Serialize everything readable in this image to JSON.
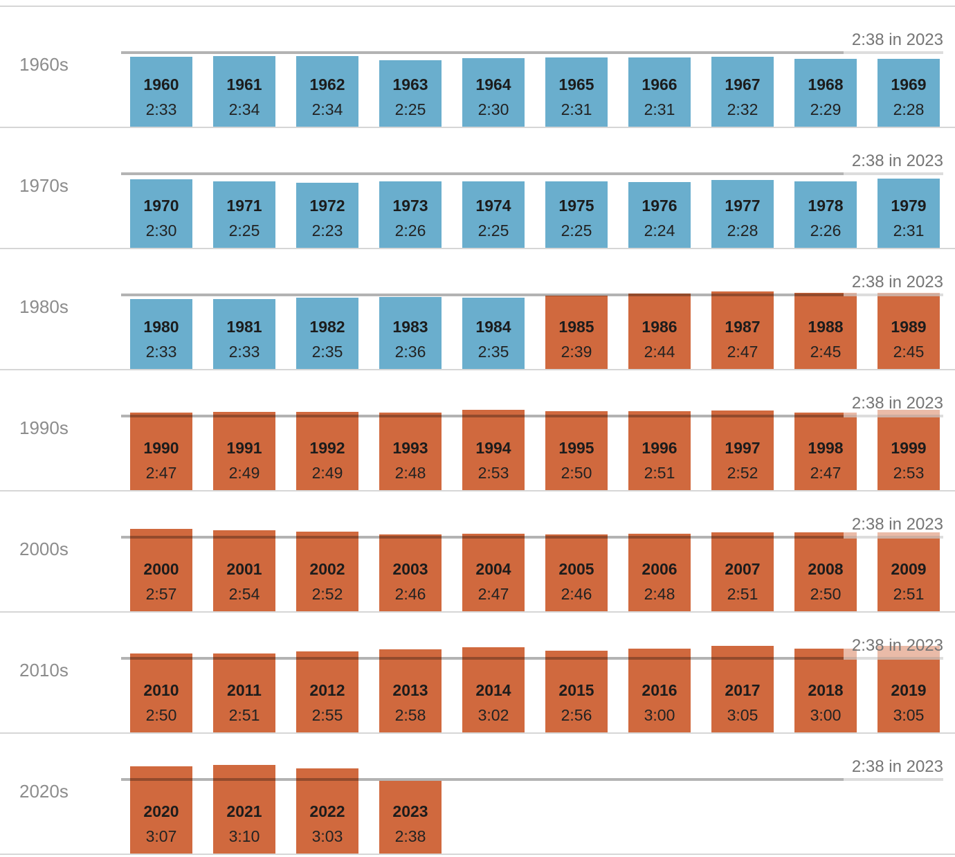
{
  "chart_data": {
    "type": "bar",
    "title": "",
    "reference_line": {
      "label": "2:38 in 2023",
      "value": "2:38",
      "value_minutes": 158
    },
    "color_rule": {
      "below_reference": "blue",
      "at_or_above_reference": "orange"
    },
    "colors": {
      "blue": "#6aaecd",
      "orange": "#d0693e",
      "reference_line": "#b3b3b3",
      "divider": "#d6d6d6",
      "decade_label_text": "#8c8c8c",
      "reference_label_text": "#757575",
      "bar_text": "#1c1c1c"
    },
    "rows": [
      {
        "decade": "1960s",
        "years": [
          {
            "year": "1960",
            "time": "2:33"
          },
          {
            "year": "1961",
            "time": "2:34"
          },
          {
            "year": "1962",
            "time": "2:34"
          },
          {
            "year": "1963",
            "time": "2:25"
          },
          {
            "year": "1964",
            "time": "2:30"
          },
          {
            "year": "1965",
            "time": "2:31"
          },
          {
            "year": "1966",
            "time": "2:31"
          },
          {
            "year": "1967",
            "time": "2:32"
          },
          {
            "year": "1968",
            "time": "2:29"
          },
          {
            "year": "1969",
            "time": "2:28"
          }
        ]
      },
      {
        "decade": "1970s",
        "years": [
          {
            "year": "1970",
            "time": "2:30"
          },
          {
            "year": "1971",
            "time": "2:25"
          },
          {
            "year": "1972",
            "time": "2:23"
          },
          {
            "year": "1973",
            "time": "2:26"
          },
          {
            "year": "1974",
            "time": "2:25"
          },
          {
            "year": "1975",
            "time": "2:25"
          },
          {
            "year": "1976",
            "time": "2:24"
          },
          {
            "year": "1977",
            "time": "2:28"
          },
          {
            "year": "1978",
            "time": "2:26"
          },
          {
            "year": "1979",
            "time": "2:31"
          }
        ]
      },
      {
        "decade": "1980s",
        "years": [
          {
            "year": "1980",
            "time": "2:33"
          },
          {
            "year": "1981",
            "time": "2:33"
          },
          {
            "year": "1982",
            "time": "2:35"
          },
          {
            "year": "1983",
            "time": "2:36"
          },
          {
            "year": "1984",
            "time": "2:35"
          },
          {
            "year": "1985",
            "time": "2:39"
          },
          {
            "year": "1986",
            "time": "2:44"
          },
          {
            "year": "1987",
            "time": "2:47"
          },
          {
            "year": "1988",
            "time": "2:45"
          },
          {
            "year": "1989",
            "time": "2:45"
          }
        ]
      },
      {
        "decade": "1990s",
        "years": [
          {
            "year": "1990",
            "time": "2:47"
          },
          {
            "year": "1991",
            "time": "2:49"
          },
          {
            "year": "1992",
            "time": "2:49"
          },
          {
            "year": "1993",
            "time": "2:48"
          },
          {
            "year": "1994",
            "time": "2:53"
          },
          {
            "year": "1995",
            "time": "2:50"
          },
          {
            "year": "1996",
            "time": "2:51"
          },
          {
            "year": "1997",
            "time": "2:52"
          },
          {
            "year": "1998",
            "time": "2:47"
          },
          {
            "year": "1999",
            "time": "2:53"
          }
        ]
      },
      {
        "decade": "2000s",
        "years": [
          {
            "year": "2000",
            "time": "2:57"
          },
          {
            "year": "2001",
            "time": "2:54"
          },
          {
            "year": "2002",
            "time": "2:52"
          },
          {
            "year": "2003",
            "time": "2:46"
          },
          {
            "year": "2004",
            "time": "2:47"
          },
          {
            "year": "2005",
            "time": "2:46"
          },
          {
            "year": "2006",
            "time": "2:48"
          },
          {
            "year": "2007",
            "time": "2:51"
          },
          {
            "year": "2008",
            "time": "2:50"
          },
          {
            "year": "2009",
            "time": "2:51"
          }
        ]
      },
      {
        "decade": "2010s",
        "years": [
          {
            "year": "2010",
            "time": "2:50"
          },
          {
            "year": "2011",
            "time": "2:51"
          },
          {
            "year": "2012",
            "time": "2:55"
          },
          {
            "year": "2013",
            "time": "2:58"
          },
          {
            "year": "2014",
            "time": "3:02"
          },
          {
            "year": "2015",
            "time": "2:56"
          },
          {
            "year": "2016",
            "time": "3:00"
          },
          {
            "year": "2017",
            "time": "3:05"
          },
          {
            "year": "2018",
            "time": "3:00"
          },
          {
            "year": "2019",
            "time": "3:05"
          }
        ]
      },
      {
        "decade": "2020s",
        "years": [
          {
            "year": "2020",
            "time": "3:07"
          },
          {
            "year": "2021",
            "time": "3:10"
          },
          {
            "year": "2022",
            "time": "3:03"
          },
          {
            "year": "2023",
            "time": "2:38"
          }
        ]
      }
    ]
  }
}
